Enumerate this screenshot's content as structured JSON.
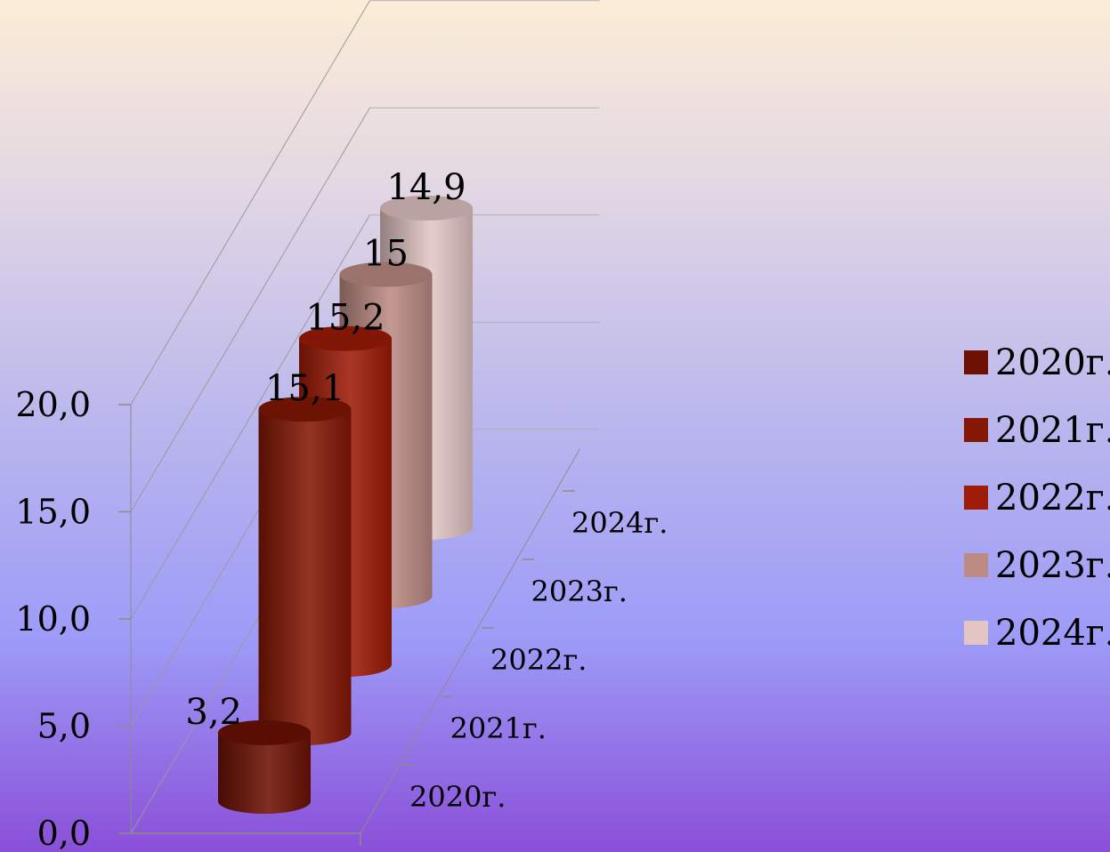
{
  "chart_data": {
    "type": "bar",
    "style": "3d-cylinder",
    "categories": [
      "2020г.",
      "2021г.",
      "2022г.",
      "2023г.",
      "2024г."
    ],
    "values": [
      3.2,
      15.1,
      15.2,
      15,
      14.9
    ],
    "value_labels": [
      "3,2",
      "15,1",
      "15,2",
      "15",
      "14,9"
    ],
    "y_ticks": [
      {
        "value": 0,
        "label": "0,0"
      },
      {
        "value": 5,
        "label": "5,0"
      },
      {
        "value": 10,
        "label": "10,0"
      },
      {
        "value": 15,
        "label": "15,0"
      },
      {
        "value": 20,
        "label": "20,0"
      }
    ],
    "ylim": [
      0,
      20
    ],
    "title": "",
    "xlabel": "",
    "ylabel": "",
    "grid": true,
    "legend": {
      "placement": "right",
      "entries": [
        "2020г.",
        "2021г.",
        "2022г.",
        "2023г.",
        "2024г."
      ]
    },
    "colors": [
      "#6e1104",
      "#851705",
      "#9e1c08",
      "#bd8b84",
      "#e2c6c4"
    ]
  }
}
